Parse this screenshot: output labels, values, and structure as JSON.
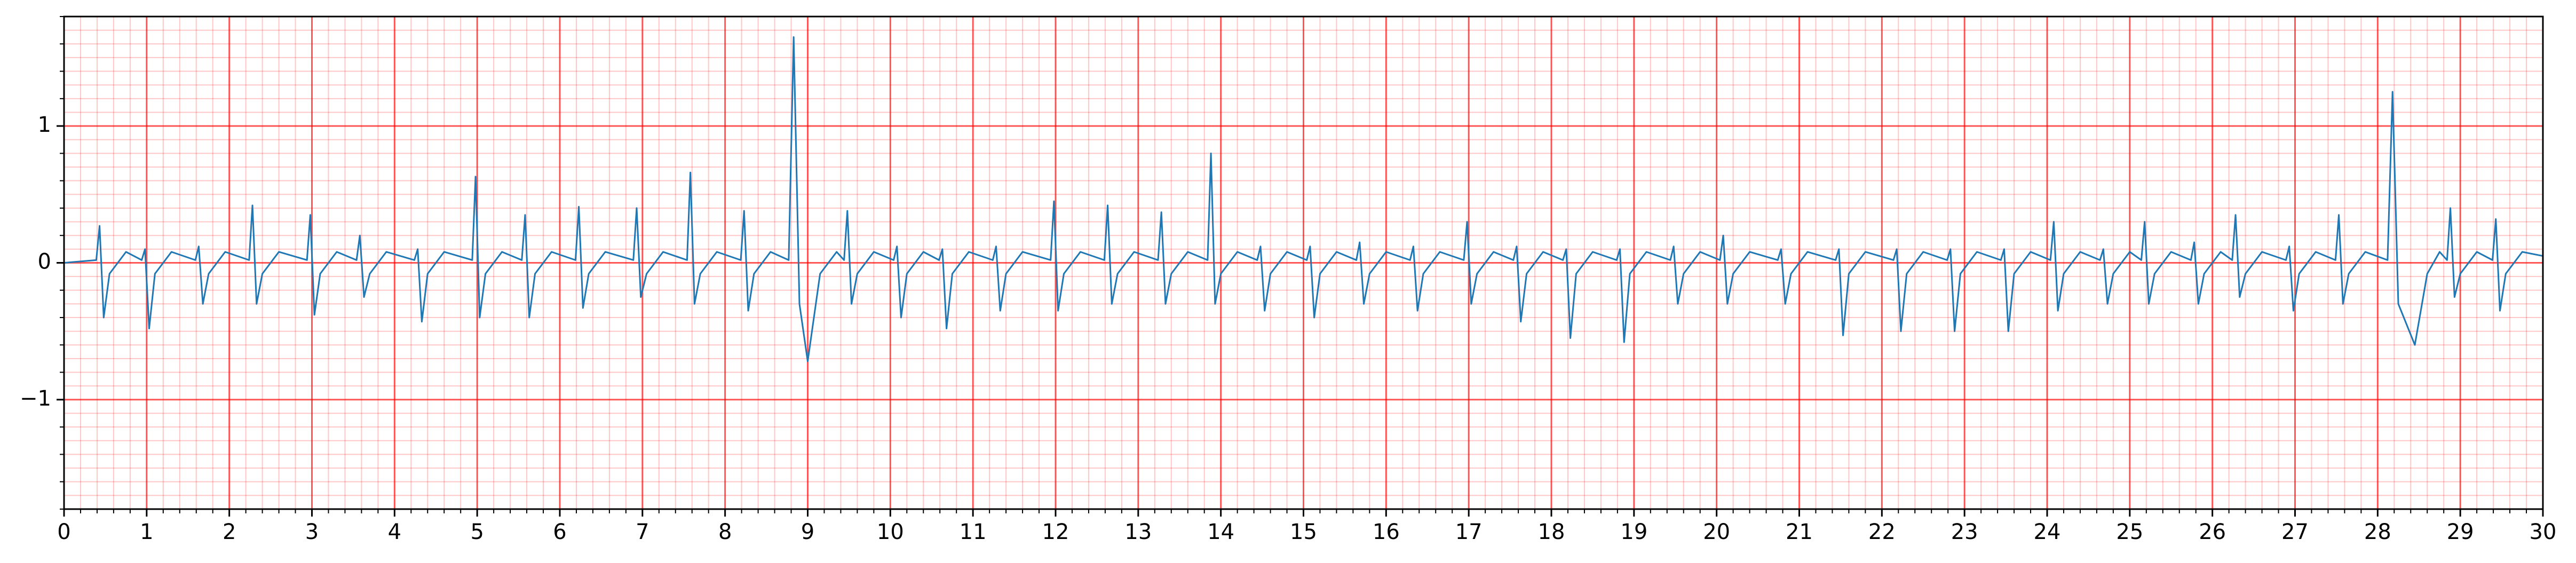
{
  "chart_data": {
    "type": "line",
    "xlim": [
      0,
      30
    ],
    "ylim": [
      -1.8,
      1.8
    ],
    "xticks": [
      0,
      1,
      2,
      3,
      4,
      5,
      6,
      7,
      8,
      9,
      10,
      11,
      12,
      13,
      14,
      15,
      16,
      17,
      18,
      19,
      20,
      21,
      22,
      23,
      24,
      25,
      26,
      27,
      28,
      29,
      30
    ],
    "yticks": [
      {
        "value": -1,
        "label": "−1"
      },
      0,
      1
    ],
    "grid": true,
    "minor_grid": {
      "x": 0.2,
      "y": 0.1
    },
    "series": [
      {
        "color": "#1f77b4",
        "x": [
          0,
          0.39,
          0.43,
          0.48,
          0.55,
          0.75,
          0.94,
          0.98,
          1.03,
          1.1,
          1.3,
          1.59,
          1.63,
          1.68,
          1.75,
          1.95,
          2.24,
          2.28,
          2.33,
          2.4,
          2.6,
          2.94,
          2.98,
          3.03,
          3.1,
          3.3,
          3.54,
          3.58,
          3.63,
          3.7,
          3.9,
          4.24,
          4.28,
          4.33,
          4.4,
          4.6,
          4.94,
          4.98,
          5.03,
          5.1,
          5.3,
          5.54,
          5.58,
          5.63,
          5.7,
          5.9,
          6.19,
          6.23,
          6.28,
          6.35,
          6.55,
          6.89,
          6.93,
          6.98,
          7.05,
          7.25,
          7.54,
          7.58,
          7.63,
          7.7,
          7.9,
          8.19,
          8.23,
          8.28,
          8.35,
          8.55,
          8.77,
          8.83,
          8.9,
          9.0,
          9.15,
          9.35,
          9.44,
          9.48,
          9.53,
          9.6,
          9.8,
          10.04,
          10.08,
          10.13,
          10.2,
          10.4,
          10.59,
          10.63,
          10.68,
          10.75,
          10.95,
          11.24,
          11.28,
          11.33,
          11.4,
          11.6,
          11.94,
          11.98,
          12.03,
          12.1,
          12.3,
          12.59,
          12.63,
          12.68,
          12.75,
          12.95,
          13.24,
          13.28,
          13.33,
          13.4,
          13.6,
          13.84,
          13.88,
          13.93,
          14.0,
          14.2,
          14.44,
          14.48,
          14.53,
          14.6,
          14.8,
          15.04,
          15.08,
          15.13,
          15.2,
          15.4,
          15.64,
          15.68,
          15.73,
          15.8,
          16.0,
          16.29,
          16.33,
          16.38,
          16.45,
          16.65,
          16.94,
          16.98,
          17.03,
          17.1,
          17.3,
          17.54,
          17.58,
          17.63,
          17.7,
          17.9,
          18.14,
          18.18,
          18.23,
          18.3,
          18.5,
          18.79,
          18.83,
          18.88,
          18.95,
          19.15,
          19.44,
          19.48,
          19.53,
          19.6,
          19.8,
          20.04,
          20.08,
          20.13,
          20.2,
          20.4,
          20.74,
          20.78,
          20.83,
          20.9,
          21.1,
          21.44,
          21.48,
          21.53,
          21.6,
          21.8,
          22.14,
          22.18,
          22.23,
          22.3,
          22.5,
          22.79,
          22.83,
          22.88,
          22.95,
          23.15,
          23.44,
          23.48,
          23.53,
          23.6,
          23.8,
          24.04,
          24.08,
          24.13,
          24.2,
          24.4,
          24.64,
          24.68,
          24.73,
          24.8,
          25.0,
          25.14,
          25.18,
          25.23,
          25.3,
          25.5,
          25.74,
          25.78,
          25.83,
          25.9,
          26.1,
          26.24,
          26.28,
          26.33,
          26.4,
          26.6,
          26.89,
          26.93,
          26.98,
          27.05,
          27.25,
          27.49,
          27.53,
          27.58,
          27.65,
          27.85,
          28.12,
          28.18,
          28.25,
          28.45,
          28.6,
          28.75,
          28.84,
          28.88,
          28.93,
          29.0,
          29.2,
          29.39,
          29.43,
          29.48,
          29.55,
          29.75,
          30
        ],
        "values": [
          0,
          0.02,
          0.27,
          -0.4,
          -0.08,
          0.08,
          0.02,
          0.1,
          -0.48,
          -0.08,
          0.08,
          0.02,
          0.12,
          -0.3,
          -0.08,
          0.08,
          0.02,
          0.42,
          -0.3,
          -0.08,
          0.08,
          0.02,
          0.35,
          -0.38,
          -0.08,
          0.08,
          0.02,
          0.2,
          -0.25,
          -0.08,
          0.08,
          0.02,
          0.1,
          -0.43,
          -0.08,
          0.08,
          0.02,
          0.63,
          -0.4,
          -0.08,
          0.08,
          0.02,
          0.35,
          -0.4,
          -0.08,
          0.08,
          0.02,
          0.41,
          -0.33,
          -0.08,
          0.08,
          0.02,
          0.4,
          -0.25,
          -0.08,
          0.08,
          0.02,
          0.66,
          -0.3,
          -0.08,
          0.08,
          0.02,
          0.38,
          -0.35,
          -0.08,
          0.08,
          0.02,
          1.65,
          -0.3,
          -0.72,
          -0.08,
          0.08,
          0.02,
          0.38,
          -0.3,
          -0.08,
          0.08,
          0.02,
          0.12,
          -0.4,
          -0.08,
          0.08,
          0.02,
          0.1,
          -0.48,
          -0.08,
          0.08,
          0.02,
          0.12,
          -0.35,
          -0.08,
          0.08,
          0.02,
          0.45,
          -0.35,
          -0.08,
          0.08,
          0.02,
          0.42,
          -0.3,
          -0.08,
          0.08,
          0.02,
          0.37,
          -0.3,
          -0.08,
          0.08,
          0.02,
          0.8,
          -0.3,
          -0.08,
          0.08,
          0.02,
          0.12,
          -0.35,
          -0.08,
          0.08,
          0.02,
          0.12,
          -0.4,
          -0.08,
          0.08,
          0.02,
          0.15,
          -0.3,
          -0.08,
          0.08,
          0.02,
          0.12,
          -0.35,
          -0.08,
          0.08,
          0.02,
          0.3,
          -0.3,
          -0.08,
          0.08,
          0.02,
          0.12,
          -0.43,
          -0.08,
          0.08,
          0.02,
          0.1,
          -0.55,
          -0.08,
          0.08,
          0.02,
          0.1,
          -0.58,
          -0.08,
          0.08,
          0.02,
          0.12,
          -0.3,
          -0.08,
          0.08,
          0.02,
          0.2,
          -0.3,
          -0.08,
          0.08,
          0.02,
          0.1,
          -0.3,
          -0.08,
          0.08,
          0.02,
          0.1,
          -0.53,
          -0.08,
          0.08,
          0.02,
          0.1,
          -0.5,
          -0.08,
          0.08,
          0.02,
          0.1,
          -0.5,
          -0.08,
          0.08,
          0.02,
          0.1,
          -0.5,
          -0.08,
          0.08,
          0.02,
          0.3,
          -0.35,
          -0.08,
          0.08,
          0.02,
          0.1,
          -0.3,
          -0.08,
          0.08,
          0.02,
          0.3,
          -0.3,
          -0.08,
          0.08,
          0.02,
          0.15,
          -0.3,
          -0.08,
          0.08,
          0.02,
          0.35,
          -0.25,
          -0.08,
          0.08,
          0.02,
          0.12,
          -0.35,
          -0.08,
          0.08,
          0.02,
          0.35,
          -0.3,
          -0.08,
          0.08,
          0.02,
          1.25,
          -0.3,
          -0.6,
          -0.08,
          0.08,
          0.02,
          0.4,
          -0.25,
          -0.08,
          0.08,
          0.02,
          0.32,
          -0.35,
          -0.08,
          0.08,
          0.05
        ]
      }
    ]
  }
}
